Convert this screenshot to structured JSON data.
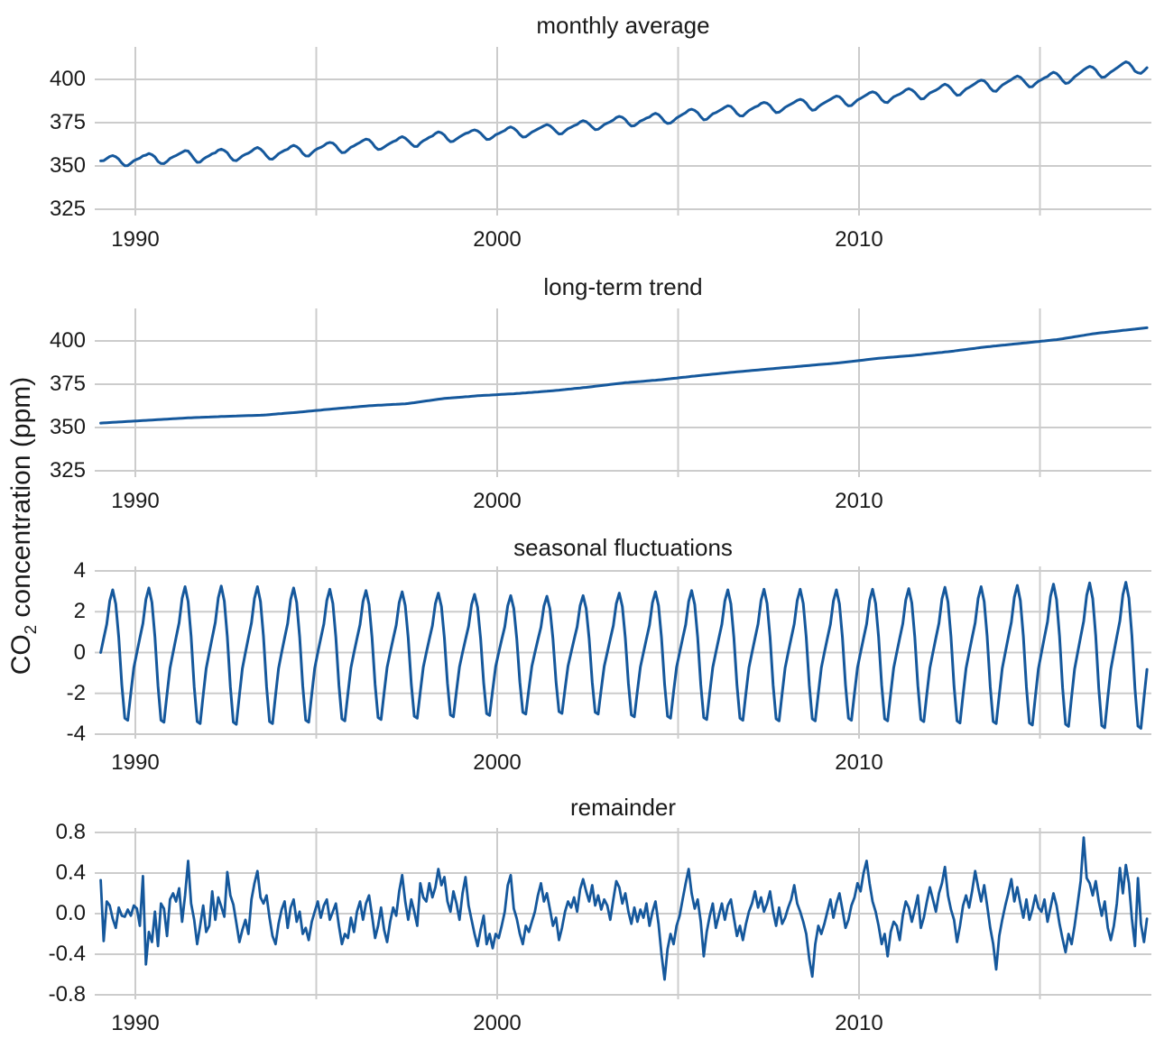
{
  "figure": {
    "ylabel": {
      "prefix": "CO",
      "sub": "2",
      "suffix": " concentration (ppm)"
    },
    "line_color": "#15589c",
    "grid_color": "#cccccc",
    "panels": [
      {
        "title": "monthly average",
        "ytick_labels": [
          "400",
          "375",
          "350",
          "325"
        ],
        "ytick_values": [
          400,
          375,
          350,
          325
        ]
      },
      {
        "title": "long-term trend",
        "ytick_labels": [
          "400",
          "375",
          "350",
          "325"
        ],
        "ytick_values": [
          400,
          375,
          350,
          325
        ]
      },
      {
        "title": "seasonal fluctuations",
        "ytick_labels": [
          "4",
          "2",
          "0",
          "-2",
          "-4"
        ],
        "ytick_values": [
          4,
          2,
          0,
          -2,
          -4
        ]
      },
      {
        "title": "remainder",
        "ytick_labels": [
          "0.8",
          "0.4",
          "0.0",
          "-0.4",
          "-0.8"
        ],
        "ytick_values": [
          0.8,
          0.4,
          0.0,
          -0.4,
          -0.8
        ]
      }
    ],
    "xaxis": {
      "grid_years": [
        1990,
        1995,
        2000,
        2005,
        2010,
        2015
      ],
      "labeled_ticks": [
        {
          "year": 1990,
          "label": "1990"
        },
        {
          "year": 2000,
          "label": "2000"
        },
        {
          "year": 2010,
          "label": "2010"
        }
      ]
    }
  },
  "chart_data": {
    "type": "line",
    "x_unit": "year",
    "start": "1989-01",
    "end": "2017-12",
    "months": 348,
    "x_range": [
      1988.87,
      2018.1
    ],
    "construction": "monthly_average = trend + seasonal_pattern[month]*seasonal_amplitude[year] + remainder",
    "panels": [
      {
        "name": "monthly average",
        "yticks": [
          325,
          350,
          375,
          400
        ],
        "ylim": [
          321,
          419
        ]
      },
      {
        "name": "long-term trend",
        "yticks": [
          325,
          350,
          375,
          400
        ],
        "ylim": [
          321,
          419
        ]
      },
      {
        "name": "seasonal fluctuations",
        "yticks": [
          -4,
          -2,
          0,
          2,
          4
        ],
        "ylim": [
          -4.2,
          4.2
        ]
      },
      {
        "name": "remainder",
        "yticks": [
          -0.8,
          -0.4,
          0.0,
          0.4,
          0.8
        ],
        "ylim": [
          -0.85,
          0.85
        ]
      }
    ],
    "trend": {
      "anchor_years": [
        1988.5,
        1989.5,
        1990.5,
        1991.5,
        1992.5,
        1993.5,
        1994.5,
        1995.5,
        1996.5,
        1997.5,
        1998.5,
        1999.5,
        2000.5,
        2001.5,
        2002.5,
        2003.5,
        2004.5,
        2005.5,
        2006.5,
        2007.5,
        2008.5,
        2009.5,
        2010.5,
        2011.5,
        2012.5,
        2013.5,
        2014.5,
        2015.5,
        2016.5,
        2017.5,
        2018.5
      ],
      "anchor_ppm": [
        351.9,
        353.12,
        354.39,
        355.61,
        356.45,
        357.1,
        358.83,
        360.82,
        362.61,
        363.73,
        366.7,
        368.38,
        369.55,
        371.14,
        373.28,
        375.8,
        377.52,
        379.8,
        381.9,
        383.79,
        385.6,
        387.43,
        389.9,
        391.65,
        393.85,
        396.52,
        398.65,
        400.83,
        404.24,
        406.55,
        408.9
      ]
    },
    "seasonal_pattern_ppm": [
      0.0,
      0.7,
      1.4,
      2.55,
      3.1,
      2.4,
      0.75,
      -1.6,
      -3.25,
      -3.35,
      -2.0,
      -0.75
    ],
    "seasonal_amplitude_by_year": [
      0.99,
      1.02,
      1.04,
      1.05,
      1.04,
      1.02,
      1.0,
      0.98,
      0.96,
      0.94,
      0.92,
      0.9,
      0.89,
      0.9,
      0.94,
      0.96,
      0.98,
      0.99,
      1.0,
      1.0,
      0.99,
      1.0,
      1.01,
      1.03,
      1.04,
      1.06,
      1.08,
      1.1,
      1.11
    ],
    "remainder_ppm": [
      0.33,
      -0.27,
      0.12,
      0.08,
      -0.05,
      -0.14,
      0.06,
      -0.02,
      -0.03,
      0.04,
      -0.02,
      0.08,
      0.05,
      -0.12,
      0.37,
      -0.5,
      -0.18,
      -0.28,
      0.02,
      -0.32,
      0.1,
      0.05,
      -0.22,
      0.14,
      0.2,
      0.12,
      0.25,
      -0.08,
      0.18,
      0.52,
      0.1,
      -0.06,
      -0.3,
      -0.12,
      0.08,
      -0.18,
      -0.12,
      0.22,
      -0.06,
      0.16,
      0.07,
      -0.03,
      0.41,
      0.18,
      0.09,
      -0.09,
      -0.28,
      -0.16,
      -0.06,
      -0.2,
      0.14,
      0.3,
      0.42,
      0.16,
      0.1,
      0.18,
      -0.04,
      -0.22,
      -0.3,
      -0.1,
      0.04,
      0.12,
      -0.14,
      0.06,
      0.14,
      -0.08,
      0.02,
      -0.2,
      -0.14,
      -0.26,
      -0.08,
      0.02,
      0.12,
      -0.04,
      0.08,
      0.14,
      -0.06,
      0.02,
      0.1,
      -0.12,
      -0.3,
      -0.2,
      -0.24,
      -0.04,
      -0.18,
      0.02,
      0.12,
      -0.06,
      0.1,
      0.18,
      -0.02,
      -0.24,
      -0.12,
      0.06,
      -0.16,
      -0.28,
      -0.08,
      0.06,
      -0.02,
      0.22,
      0.38,
      0.12,
      -0.06,
      0.14,
      0.02,
      -0.12,
      0.3,
      0.16,
      0.12,
      0.3,
      0.16,
      0.26,
      0.44,
      0.28,
      0.36,
      0.12,
      0.02,
      0.22,
      0.1,
      -0.06,
      0.2,
      0.36,
      0.08,
      -0.06,
      -0.2,
      -0.32,
      -0.16,
      -0.02,
      -0.3,
      -0.2,
      -0.34,
      -0.2,
      -0.24,
      -0.12,
      0.02,
      0.28,
      0.38,
      0.05,
      -0.05,
      -0.2,
      -0.3,
      -0.12,
      -0.18,
      -0.08,
      0.02,
      0.18,
      0.3,
      0.12,
      0.2,
      0.04,
      -0.12,
      -0.04,
      -0.26,
      -0.14,
      0.02,
      0.12,
      0.06,
      0.16,
      0.02,
      0.24,
      0.34,
      0.22,
      0.12,
      0.28,
      0.08,
      0.18,
      0.04,
      0.14,
      0.08,
      -0.06,
      0.14,
      0.32,
      0.26,
      0.1,
      0.2,
      0.02,
      -0.1,
      0.06,
      -0.08,
      0.04,
      -0.04,
      0.1,
      -0.12,
      0.02,
      0.12,
      -0.1,
      -0.4,
      -0.65,
      -0.35,
      -0.2,
      -0.3,
      -0.12,
      -0.02,
      0.14,
      0.3,
      0.44,
      0.2,
      0.05,
      0.14,
      -0.08,
      -0.42,
      -0.18,
      -0.02,
      0.1,
      -0.14,
      -0.02,
      0.1,
      -0.06,
      0.08,
      0.14,
      -0.04,
      -0.22,
      -0.12,
      -0.26,
      -0.1,
      0.02,
      0.1,
      0.22,
      0.06,
      0.16,
      0.02,
      0.1,
      0.22,
      0.02,
      -0.12,
      0.06,
      -0.1,
      -0.04,
      0.06,
      0.14,
      0.28,
      0.1,
      0.02,
      -0.08,
      -0.2,
      -0.45,
      -0.62,
      -0.3,
      -0.12,
      -0.2,
      -0.1,
      0.02,
      0.14,
      -0.04,
      0.1,
      0.2,
      0.04,
      -0.14,
      -0.06,
      0.08,
      0.16,
      0.3,
      0.22,
      0.4,
      0.52,
      0.3,
      0.12,
      0.02,
      -0.12,
      -0.3,
      -0.2,
      -0.42,
      -0.18,
      -0.08,
      -0.12,
      -0.26,
      -0.02,
      0.12,
      0.06,
      -0.08,
      0.04,
      0.18,
      -0.14,
      -0.04,
      0.12,
      0.26,
      0.14,
      0.02,
      0.2,
      0.3,
      0.46,
      0.18,
      0.04,
      -0.06,
      -0.28,
      -0.12,
      0.08,
      0.18,
      0.06,
      0.22,
      0.42,
      0.26,
      0.12,
      0.28,
      0.08,
      -0.14,
      -0.3,
      -0.55,
      -0.22,
      -0.06,
      0.08,
      0.2,
      0.34,
      0.12,
      0.26,
      0.1,
      -0.04,
      0.14,
      -0.06,
      0.04,
      0.18,
      0.06,
      0.02,
      0.14,
      -0.08,
      0.06,
      0.2,
      0.08,
      -0.1,
      -0.25,
      -0.38,
      -0.2,
      -0.3,
      -0.12,
      0.1,
      0.32,
      0.75,
      0.35,
      0.3,
      0.18,
      0.32,
      0.12,
      -0.02,
      0.12,
      -0.14,
      -0.26,
      -0.12,
      0.1,
      0.45,
      0.2,
      0.48,
      0.3,
      -0.05,
      -0.32,
      0.35,
      -0.1,
      -0.28,
      -0.05
    ]
  }
}
